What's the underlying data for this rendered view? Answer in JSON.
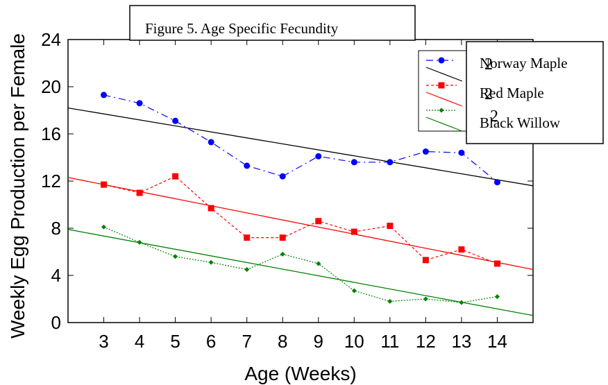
{
  "chart_data": {
    "type": "line",
    "title": "Figure 5. Age Specific Fecundity",
    "xlabel": "Age (Weeks)",
    "ylabel": "Weekly Egg Production per Female",
    "x": [
      3,
      4,
      5,
      6,
      7,
      8,
      9,
      10,
      11,
      12,
      13,
      14
    ],
    "xlim": [
      2,
      15
    ],
    "ylim": [
      0,
      24
    ],
    "yticks": [
      0,
      4,
      8,
      12,
      16,
      20,
      24
    ],
    "xticks": [
      3,
      4,
      5,
      6,
      7,
      8,
      9,
      10,
      11,
      12,
      13,
      14
    ],
    "legend_position": "top-right",
    "legend_overlay_glyph": "2",
    "series": [
      {
        "name": "Norway Maple",
        "color": "#0000ff",
        "fit_color": "#000000",
        "marker": "circle",
        "values": [
          19.3,
          18.6,
          17.1,
          15.3,
          13.3,
          12.4,
          14.1,
          13.6,
          13.6,
          14.5,
          14.4,
          11.9
        ],
        "fit": {
          "x_start": 2,
          "y_start": 18.2,
          "x_end": 15,
          "y_end": 11.6
        }
      },
      {
        "name": "Red Maple",
        "color": "#ff0000",
        "fit_color": "#ff0000",
        "marker": "square",
        "values": [
          11.7,
          11.0,
          12.4,
          9.7,
          7.2,
          7.2,
          8.6,
          7.7,
          8.2,
          5.3,
          6.2,
          5.0
        ],
        "fit": {
          "x_start": 2,
          "y_start": 12.3,
          "x_end": 15,
          "y_end": 4.5
        }
      },
      {
        "name": "Black Willow",
        "color": "#008000",
        "fit_color": "#008000",
        "marker": "diamond",
        "values": [
          8.1,
          6.8,
          5.6,
          5.1,
          4.5,
          5.8,
          5.0,
          2.7,
          1.8,
          2.0,
          1.7,
          2.2
        ],
        "fit": {
          "x_start": 2,
          "y_start": 7.9,
          "x_end": 15,
          "y_end": 0.6
        }
      }
    ]
  }
}
